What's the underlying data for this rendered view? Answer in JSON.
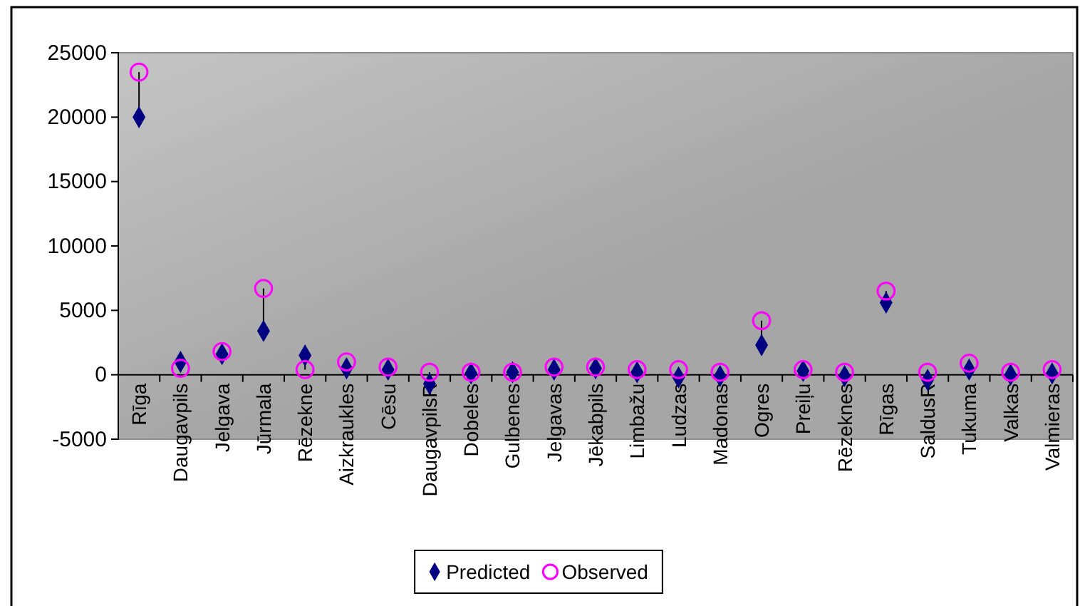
{
  "chart_data": {
    "type": "scatter",
    "categories": [
      "Rīga",
      "Daugavpils",
      "Jelgava",
      "Jūrmala",
      "Rēzekne",
      "Aizkraukles",
      "Cēsu",
      "DaugavpilsR",
      "Dobeles",
      "Gulbenes",
      "Jelgavas",
      "Jēkabpils",
      "Limbažu",
      "Ludzas",
      "Madonas",
      "Ogres",
      "Preiļu",
      "Rēzeknes",
      "Rīgas",
      "SaldusR",
      "Tukuma",
      "Valkas",
      "Valmieras"
    ],
    "series": [
      {
        "name": "Predicted",
        "color": "#000080",
        "marker": "diamond",
        "values": [
          20000,
          1000,
          1600,
          3400,
          1500,
          500,
          400,
          -700,
          100,
          200,
          400,
          500,
          200,
          -200,
          -100,
          2300,
          300,
          -100,
          5600,
          -400,
          400,
          0,
          100
        ]
      },
      {
        "name": "Observed",
        "color": "#ff00ff",
        "marker": "circle",
        "values": [
          23500,
          500,
          1800,
          6700,
          400,
          1000,
          600,
          200,
          200,
          200,
          600,
          600,
          400,
          400,
          200,
          4200,
          400,
          200,
          6500,
          200,
          900,
          200,
          400
        ]
      }
    ],
    "ylim": [
      -5000,
      25000
    ],
    "yticks": [
      -5000,
      0,
      5000,
      10000,
      15000,
      20000,
      25000
    ],
    "legend": "bottom"
  }
}
